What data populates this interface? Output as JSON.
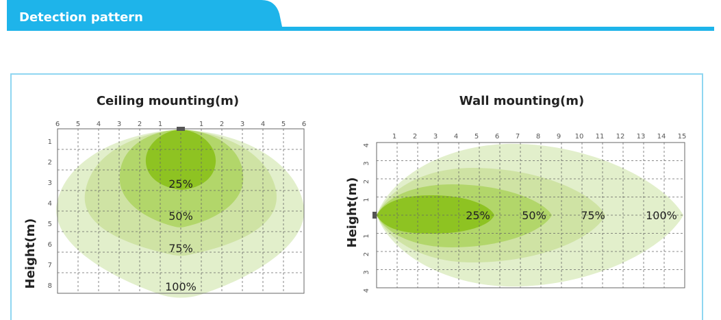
{
  "header": {
    "title": "Detection pattern"
  },
  "colors": {
    "accent": "#1eb4ea",
    "frame": "#8fd6f1",
    "zone_100": "#e2efcb",
    "zone_75": "#cfe3a4",
    "zone_50": "#b2d66a",
    "zone_25": "#8ec322",
    "sensor": "#555555"
  },
  "ceiling": {
    "title": "Ceiling mounting(m)",
    "ylabel": "Height(m)",
    "x_ticks": [
      "6",
      "5",
      "4",
      "3",
      "2",
      "1",
      "",
      "1",
      "2",
      "3",
      "4",
      "5",
      "6"
    ],
    "y_ticks": [
      "1",
      "2",
      "3",
      "4",
      "5",
      "6",
      "7",
      "8"
    ],
    "zones": [
      "25%",
      "50%",
      "75%",
      "100%"
    ]
  },
  "wall": {
    "title": "Wall mounting(m)",
    "ylabel": "Height(m)",
    "x_ticks": [
      "1",
      "2",
      "3",
      "4",
      "5",
      "6",
      "7",
      "8",
      "9",
      "10",
      "11",
      "12",
      "13",
      "14",
      "15"
    ],
    "y_ticks": [
      "4",
      "3",
      "2",
      "1",
      "",
      "1",
      "2",
      "3",
      "4"
    ],
    "zones": [
      "25%",
      "50%",
      "75%",
      "100%"
    ]
  }
}
